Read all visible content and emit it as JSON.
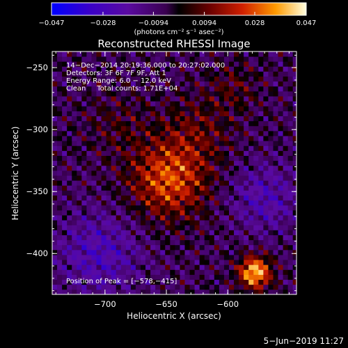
{
  "chart_data": {
    "type": "heatmap",
    "title": "Reconstructed RHESSI Image",
    "xlabel": "Heliocentric X (arcsec)",
    "ylabel": "Heliocentric Y (arcsec)",
    "xlim": [
      -743,
      -544
    ],
    "ylim": [
      -433,
      -237
    ],
    "x_ticks": [
      -700,
      -650,
      -600
    ],
    "x_tick_labels": [
      "−700",
      "−650",
      "−600"
    ],
    "y_ticks": [
      -250,
      -300,
      -350,
      -400
    ],
    "y_tick_labels": [
      "−250",
      "−300",
      "−350",
      "−400"
    ],
    "colorbar": {
      "min": -0.047,
      "max": 0.047,
      "ticks": [
        -0.047,
        -0.028,
        -0.0094,
        0.0094,
        0.028,
        0.047
      ],
      "tick_labels": [
        "−0.047",
        "−0.028",
        "−0.0094",
        "0.0094",
        "0.028",
        "0.047"
      ],
      "unit_label": "(photons cm⁻² s⁻¹ asec⁻²)"
    },
    "annotations": [
      "14−Dec−2014 20:19:36.000 to 20:27:02.000",
      "Detectors: 3F 6F 7F 9F, Att 1",
      "Energy Range: 6.0 − 12.0 keV",
      "Clean     Total counts: 1.71E+04"
    ],
    "peak_label": "Position of Peak = [−578,−415]",
    "peak": [
      -578,
      -415
    ],
    "sources": [
      {
        "x": -648,
        "y": -340,
        "amplitude": 0.032,
        "width": 22
      },
      {
        "x": -625,
        "y": -300,
        "amplitude": 0.012,
        "width": 20
      },
      {
        "x": -578,
        "y": -415,
        "amplitude": 0.047,
        "width": 9
      },
      {
        "x": -690,
        "y": -295,
        "amplitude": 0.008,
        "width": 18
      },
      {
        "x": -595,
        "y": -265,
        "amplitude": 0.01,
        "width": 14
      },
      {
        "x": -705,
        "y": -400,
        "amplitude": -0.018,
        "width": 24
      },
      {
        "x": -570,
        "y": -355,
        "amplitude": -0.016,
        "width": 20
      }
    ]
  },
  "footer": {
    "date": "5−Jun−2019 11:27"
  }
}
